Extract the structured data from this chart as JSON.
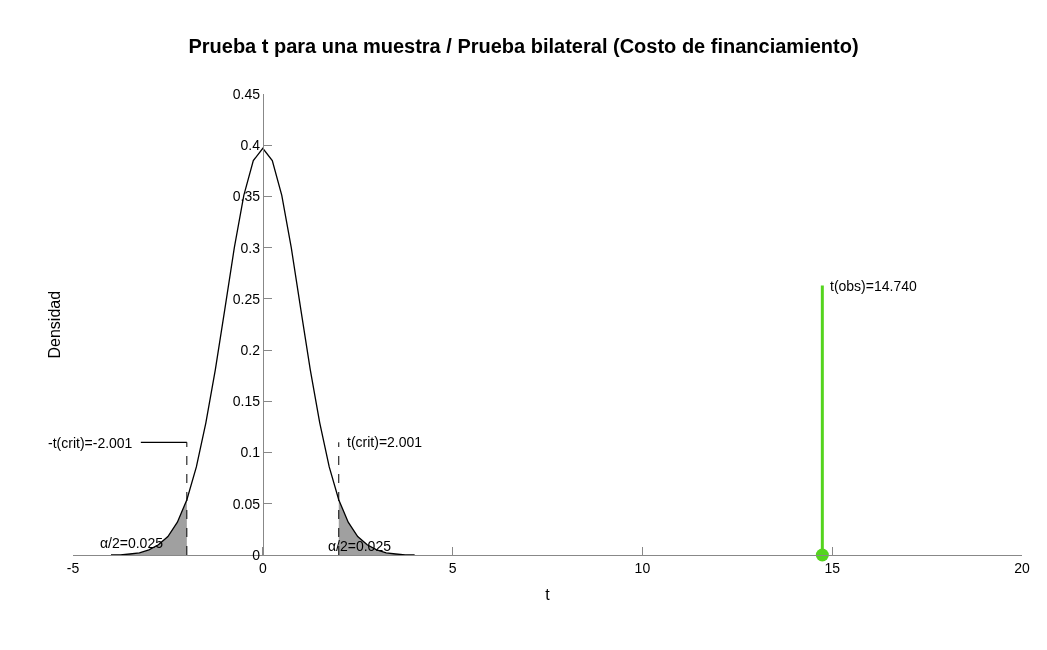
{
  "chart_data": {
    "type": "line",
    "title": "Prueba t para una muestra / Prueba bilateral (Costo de financiamiento)",
    "xlabel": "t",
    "ylabel": "Densidad",
    "xlim": [
      -5,
      20
    ],
    "xticks": [
      -5,
      0,
      5,
      10,
      15,
      20
    ],
    "ylim": [
      0,
      0.45
    ],
    "yticks": [
      0,
      0.05,
      0.1,
      0.15,
      0.2,
      0.25,
      0.3,
      0.35,
      0.4,
      0.45
    ],
    "series": [
      {
        "type": "area",
        "color": "#a0a0a0",
        "x": [
          -4,
          -3.75,
          -3.5,
          -3.25,
          -3,
          -2.75,
          -2.5,
          -2.25,
          -2.001
        ],
        "values": [
          0,
          0,
          0.001,
          0.002,
          0.005,
          0.01,
          0.018,
          0.032,
          0.054
        ]
      },
      {
        "type": "area",
        "color": "#a0a0a0",
        "x": [
          2.001,
          2.25,
          2.5,
          2.75,
          3,
          3.25,
          3.5,
          3.75,
          4
        ],
        "values": [
          0.054,
          0.032,
          0.018,
          0.01,
          0.005,
          0.002,
          0.001,
          0,
          0
        ]
      },
      {
        "color": "#000000",
        "marker": "none",
        "line_style": "solid",
        "x": [
          -4,
          -3.75,
          -3.5,
          -3.25,
          -3,
          -2.75,
          -2.5,
          -2.25,
          -2,
          -1.75,
          -1.5,
          -1.25,
          -1,
          -0.75,
          -0.5,
          -0.25,
          0,
          0.25,
          0.5,
          0.75,
          1,
          1.25,
          1.5,
          1.75,
          2,
          2.25,
          2.5,
          2.75,
          3,
          3.25,
          3.5,
          3.75,
          4
        ],
        "values": [
          0,
          0,
          0.001,
          0.002,
          0.005,
          0.01,
          0.018,
          0.032,
          0.054,
          0.086,
          0.129,
          0.181,
          0.24,
          0.3,
          0.351,
          0.385,
          0.397,
          0.385,
          0.351,
          0.3,
          0.24,
          0.181,
          0.129,
          0.086,
          0.054,
          0.032,
          0.018,
          0.01,
          0.005,
          0.002,
          0.001,
          0,
          0
        ]
      },
      {
        "type": "line",
        "color": "#000000",
        "marker": "none",
        "line_style": "dashed",
        "x": [
          -2.001,
          -2.001
        ],
        "values": [
          0,
          0.11
        ]
      },
      {
        "type": "line",
        "color": "#000000",
        "marker": "none",
        "line_style": "dashed",
        "x": [
          2.001,
          2.001
        ],
        "values": [
          0,
          0.11
        ]
      },
      {
        "type": "line",
        "color": "#55d41e",
        "marker": "none",
        "line_style": "solid",
        "x": [
          14.74,
          14.74
        ],
        "values": [
          0,
          0.263
        ]
      },
      {
        "type": "scatter",
        "color": "#55d41e",
        "marker": "circle",
        "x": [
          14.74
        ],
        "values": [
          0
        ]
      }
    ],
    "annotations": [
      "-t(crit)=-2.001",
      {
        "text": "t(crit)=2.001",
        "x": 2.001,
        "y": 0.11
      },
      "α/2=0.025",
      "α/2=0.025",
      {
        "text": "t(obs)=14.740",
        "x": 14.74,
        "y": 0.263
      }
    ]
  }
}
